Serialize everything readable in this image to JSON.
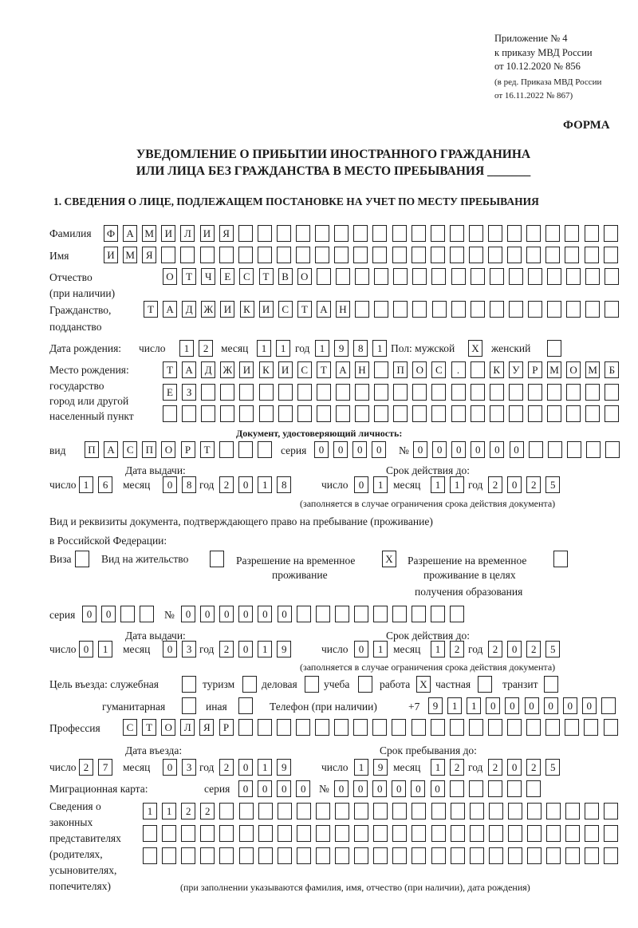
{
  "header": {
    "appendix": "Приложение № 4",
    "order": "к приказу МВД России",
    "order_date": "от 10.12.2020 № 856",
    "edition_1": "(в ред. Приказа МВД России",
    "edition_2": "от 16.11.2022 № 867)",
    "form": "ФОРМА",
    "title_1": "УВЕДОМЛЕНИЕ О ПРИБЫТИИ ИНОСТРАННОГО ГРАЖДАНИНА",
    "title_2": "ИЛИ ЛИЦА БЕЗ ГРАЖДАНСТВА В МЕСТО ПРЕБЫВАНИЯ _______",
    "section_1": "1. СВЕДЕНИЯ О ЛИЦЕ, ПОДЛЕЖАЩЕМ ПОСТАНОВКЕ НА УЧЕТ ПО МЕСТУ ПРЕБЫВАНИЯ"
  },
  "labels": {
    "surname": "Фамилия",
    "name": "Имя",
    "patronymic": "Отчество",
    "patronymic_note": "(при наличии)",
    "citizenship_1": "Гражданство,",
    "citizenship_2": "подданство",
    "birth_date": "Дата рождения:",
    "day": "число",
    "month": "месяц",
    "year": "год",
    "sex": "Пол: мужской",
    "female": "женский",
    "birthplace_1": "Место рождения:",
    "birthplace_2": "государство",
    "birthplace_3": "город или другой",
    "birthplace_4": "населенный пункт",
    "id_doc": "Документ, удостоверяющий личность:",
    "kind": "вид",
    "series": "серия",
    "number": "№",
    "issue_date": "Дата выдачи:",
    "valid_until": "Срок действия до:",
    "valid_note": "(заполняется в случае ограничения срока действия документа)",
    "right_doc_1": "Вид и реквизиты документа, подтверждающего право на пребывание (проживание)",
    "right_doc_2": "в Российской Федерации:",
    "visa": "Виза",
    "residence": "Вид на жительство",
    "temp_1": "Разрешение на временное",
    "temp_2": "проживание",
    "temp_edu_1": "Разрешение на временное",
    "temp_edu_2": "проживание в целях",
    "temp_edu_3": "получения образования",
    "purpose": "Цель въезда: служебная",
    "tourism": "туризм",
    "business": "деловая",
    "study": "учеба",
    "work": "работа",
    "private": "частная",
    "transit": "транзит",
    "humanitarian": "гуманитарная",
    "other": "иная",
    "phone": "Телефон (при наличии)",
    "phone_prefix": "+7",
    "profession": "Профессия",
    "entry_date": "Дата въезда:",
    "stay_until": "Срок пребывания до:",
    "migration_card": "Миграционная карта:",
    "reps_1": "Сведения о",
    "reps_2": "законных",
    "reps_3": "представителях",
    "reps_4": "(родителях,",
    "reps_5": "усыновителях,",
    "reps_6": "попечителях)",
    "reps_note": "(при заполнении указываются фамилия, имя, отчество (при наличии), дата рождения)"
  },
  "values": {
    "surname": "ФАМИЛИЯ",
    "name": "ИМЯ",
    "patronymic": "ОТЧЕСТВО",
    "citizenship": "ТАДЖИКИСТАН",
    "birth_day": "12",
    "birth_month": "11",
    "birth_year": "1981",
    "sex_male": "X",
    "sex_female": "",
    "birthplace_1": "ТАДЖИКИСТАН ПОС. КУРМОМБ",
    "birthplace_2": "ЕЗ",
    "birthplace_3": "",
    "doc_kind": "ПАСПОРТ",
    "doc_series": "0000",
    "doc_number": "000000",
    "doc_issue_day": "16",
    "doc_issue_month": "08",
    "doc_issue_year": "2018",
    "doc_valid_day": "01",
    "doc_valid_month": "11",
    "doc_valid_year": "2025",
    "visa": "",
    "residence_permit": "",
    "temp_residence": "X",
    "temp_residence_edu": "",
    "right_series": "00",
    "right_number": "000000",
    "right_issue_day": "01",
    "right_issue_month": "03",
    "right_issue_year": "2019",
    "right_valid_day": "01",
    "right_valid_month": "12",
    "right_valid_year": "2025",
    "purpose_service": "",
    "purpose_tourism": "",
    "purpose_business": "",
    "purpose_study": "",
    "purpose_work": "X",
    "purpose_private": "",
    "purpose_transit": "",
    "purpose_humanitarian": "",
    "purpose_other": "",
    "phone": "911000000",
    "profession": "СТОЛЯР",
    "entry_day": "27",
    "entry_month": "03",
    "entry_year": "2019",
    "stay_day": "19",
    "stay_month": "12",
    "stay_year": "2025",
    "mc_series": "0000",
    "mc_number": "000000",
    "reps_1": "1122",
    "reps_2": "",
    "reps_3": ""
  }
}
